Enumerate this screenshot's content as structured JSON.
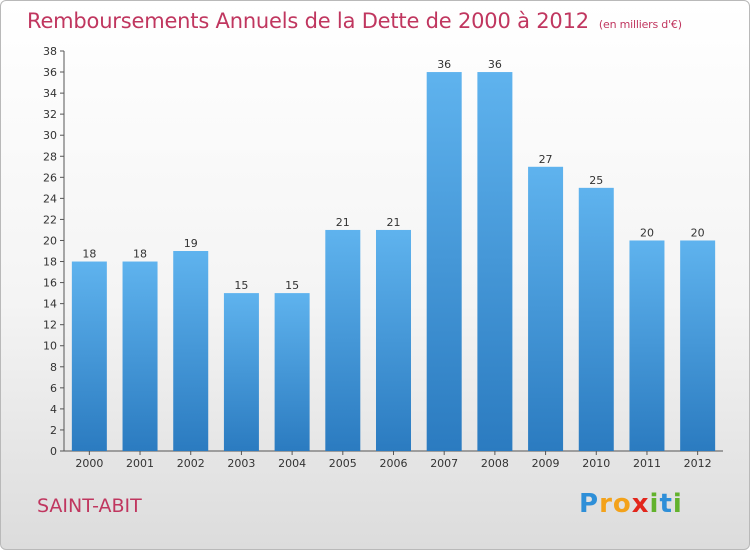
{
  "chart_data": {
    "type": "bar",
    "title": "Remboursements Annuels de la Dette de 2000 à 2012",
    "unit": "(en milliers d'€)",
    "categories": [
      "2000",
      "2001",
      "2002",
      "2003",
      "2004",
      "2005",
      "2006",
      "2007",
      "2008",
      "2009",
      "2010",
      "2011",
      "2012"
    ],
    "values": [
      18,
      18,
      19,
      15,
      15,
      21,
      21,
      36,
      36,
      27,
      25,
      20,
      20
    ],
    "ylim": [
      0,
      38
    ],
    "ytick_step": 2,
    "grid": false,
    "colors": {
      "bar_top": "#5fb3ee",
      "bar_bottom": "#2b7bc0",
      "title": "#c0365f"
    }
  },
  "commune": "SAINT-ABIT",
  "logo": {
    "letters": [
      "P",
      "r",
      "o",
      "x",
      "i",
      "t",
      "i"
    ],
    "colors": [
      "#2e8fd8",
      "#f3a21a",
      "#f3a21a",
      "#e2261c",
      "#62b22c",
      "#2e8fd8",
      "#62b22c"
    ]
  }
}
